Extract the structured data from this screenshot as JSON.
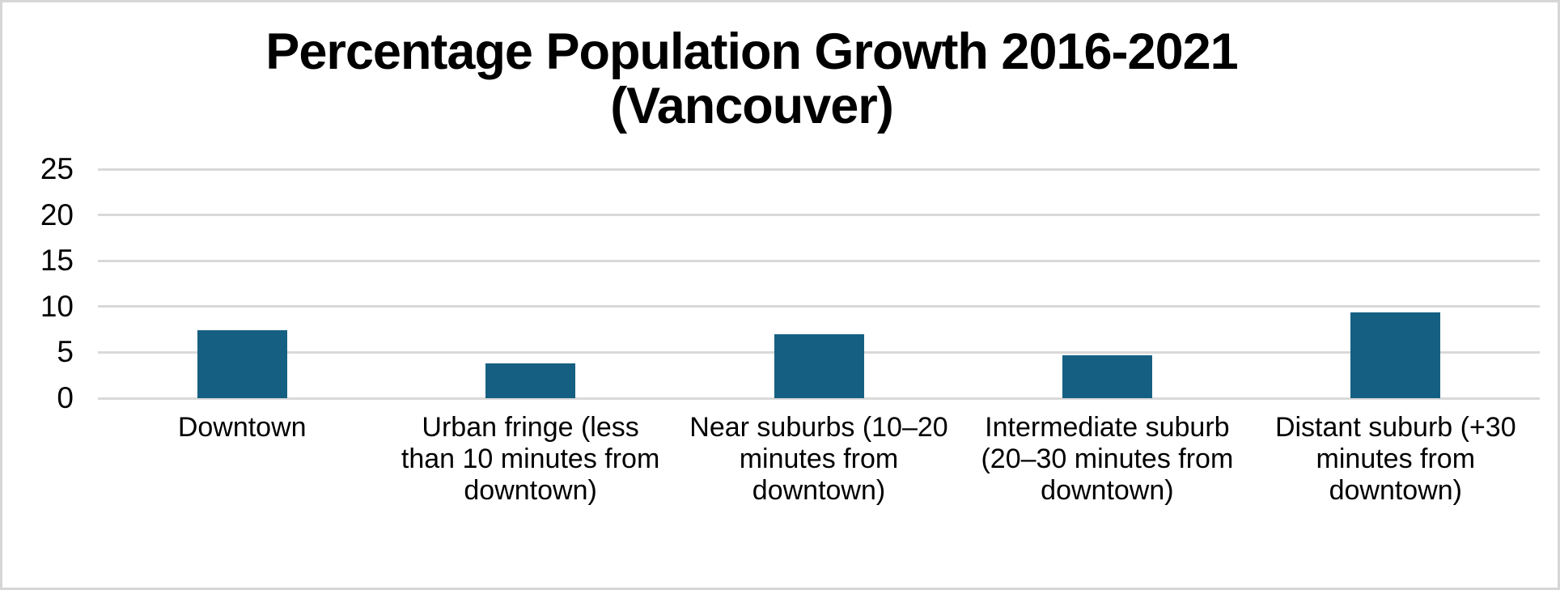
{
  "page": {
    "background_color": "#ffffff",
    "frame_border_color": "#d6d6d6"
  },
  "chart_data": {
    "type": "bar",
    "title": "Percentage Population Growth 2016-2021 (Vancouver)",
    "title_lines": {
      "0": "Percentage Population Growth 2016-2021",
      "1": "(Vancouver)"
    },
    "categories": [
      "Downtown",
      "Urban fringe (less than 10 minutes from downtown)",
      "Near suburbs (10–20 minutes from downtown)",
      "Intermediate suburb (20–30 minutes from downtown)",
      "Distant suburb (+30 minutes from downtown)"
    ],
    "category_label_lines": [
      [
        "Downtown"
      ],
      [
        "Urban fringe (less",
        "than 10 minutes from",
        "downtown)"
      ],
      [
        "Near suburbs (10–20",
        "minutes from",
        "downtown)"
      ],
      [
        "Intermediate suburb",
        "(20–30 minutes from",
        "downtown)"
      ],
      [
        "Distant suburb (+30",
        "minutes from",
        "downtown)"
      ]
    ],
    "values": [
      7.4,
      3.8,
      7.0,
      4.7,
      9.4
    ],
    "xlabel": "",
    "ylabel": "",
    "ylim": [
      0,
      25
    ],
    "yticks": [
      25,
      20,
      15,
      10,
      5,
      0
    ],
    "grid": true,
    "legend": "none",
    "bar_color": "#156082",
    "gridline_color": "#d9d9d9",
    "text_color": "#000000"
  }
}
